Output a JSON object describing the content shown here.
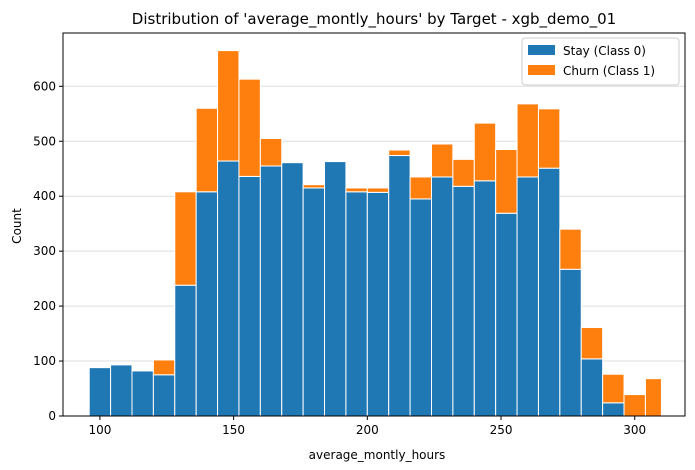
{
  "chart_data": {
    "type": "bar",
    "title": "Distribution of 'average_montly_hours' by Target - xgb_demo_01",
    "xlabel": "average_montly_hours",
    "ylabel": "Count",
    "xlim": [
      86.2,
      318.8
    ],
    "ylim": [
      0,
      697
    ],
    "x_ticks": [
      100,
      150,
      200,
      250,
      300
    ],
    "y_ticks": [
      0,
      100,
      200,
      300,
      400,
      500,
      600
    ],
    "grid": "y",
    "stacked": true,
    "bin_edges": [
      96,
      104,
      112,
      120,
      128,
      136,
      144,
      152,
      160,
      168,
      176,
      184,
      192,
      200,
      208,
      216,
      224,
      232,
      240,
      248,
      256,
      264,
      272,
      280,
      288,
      296,
      304,
      310
    ],
    "series": [
      {
        "name": "Stay (Class 0)",
        "color": "#1f77b4",
        "values": [
          88,
          93,
          82,
          75,
          238,
          408,
          464,
          436,
          455,
          461,
          415,
          463,
          408,
          407,
          474,
          395,
          435,
          418,
          428,
          369,
          435,
          451,
          267,
          104,
          24,
          0,
          0
        ]
      },
      {
        "name": "Churn (Class 1)",
        "color": "#ff7f0e",
        "values": [
          0,
          0,
          0,
          27,
          170,
          152,
          201,
          177,
          50,
          0,
          6,
          0,
          7,
          8,
          10,
          40,
          60,
          49,
          105,
          116,
          133,
          108,
          73,
          57,
          52,
          39,
          68
        ]
      }
    ],
    "legend": {
      "placement": "top-right"
    }
  }
}
